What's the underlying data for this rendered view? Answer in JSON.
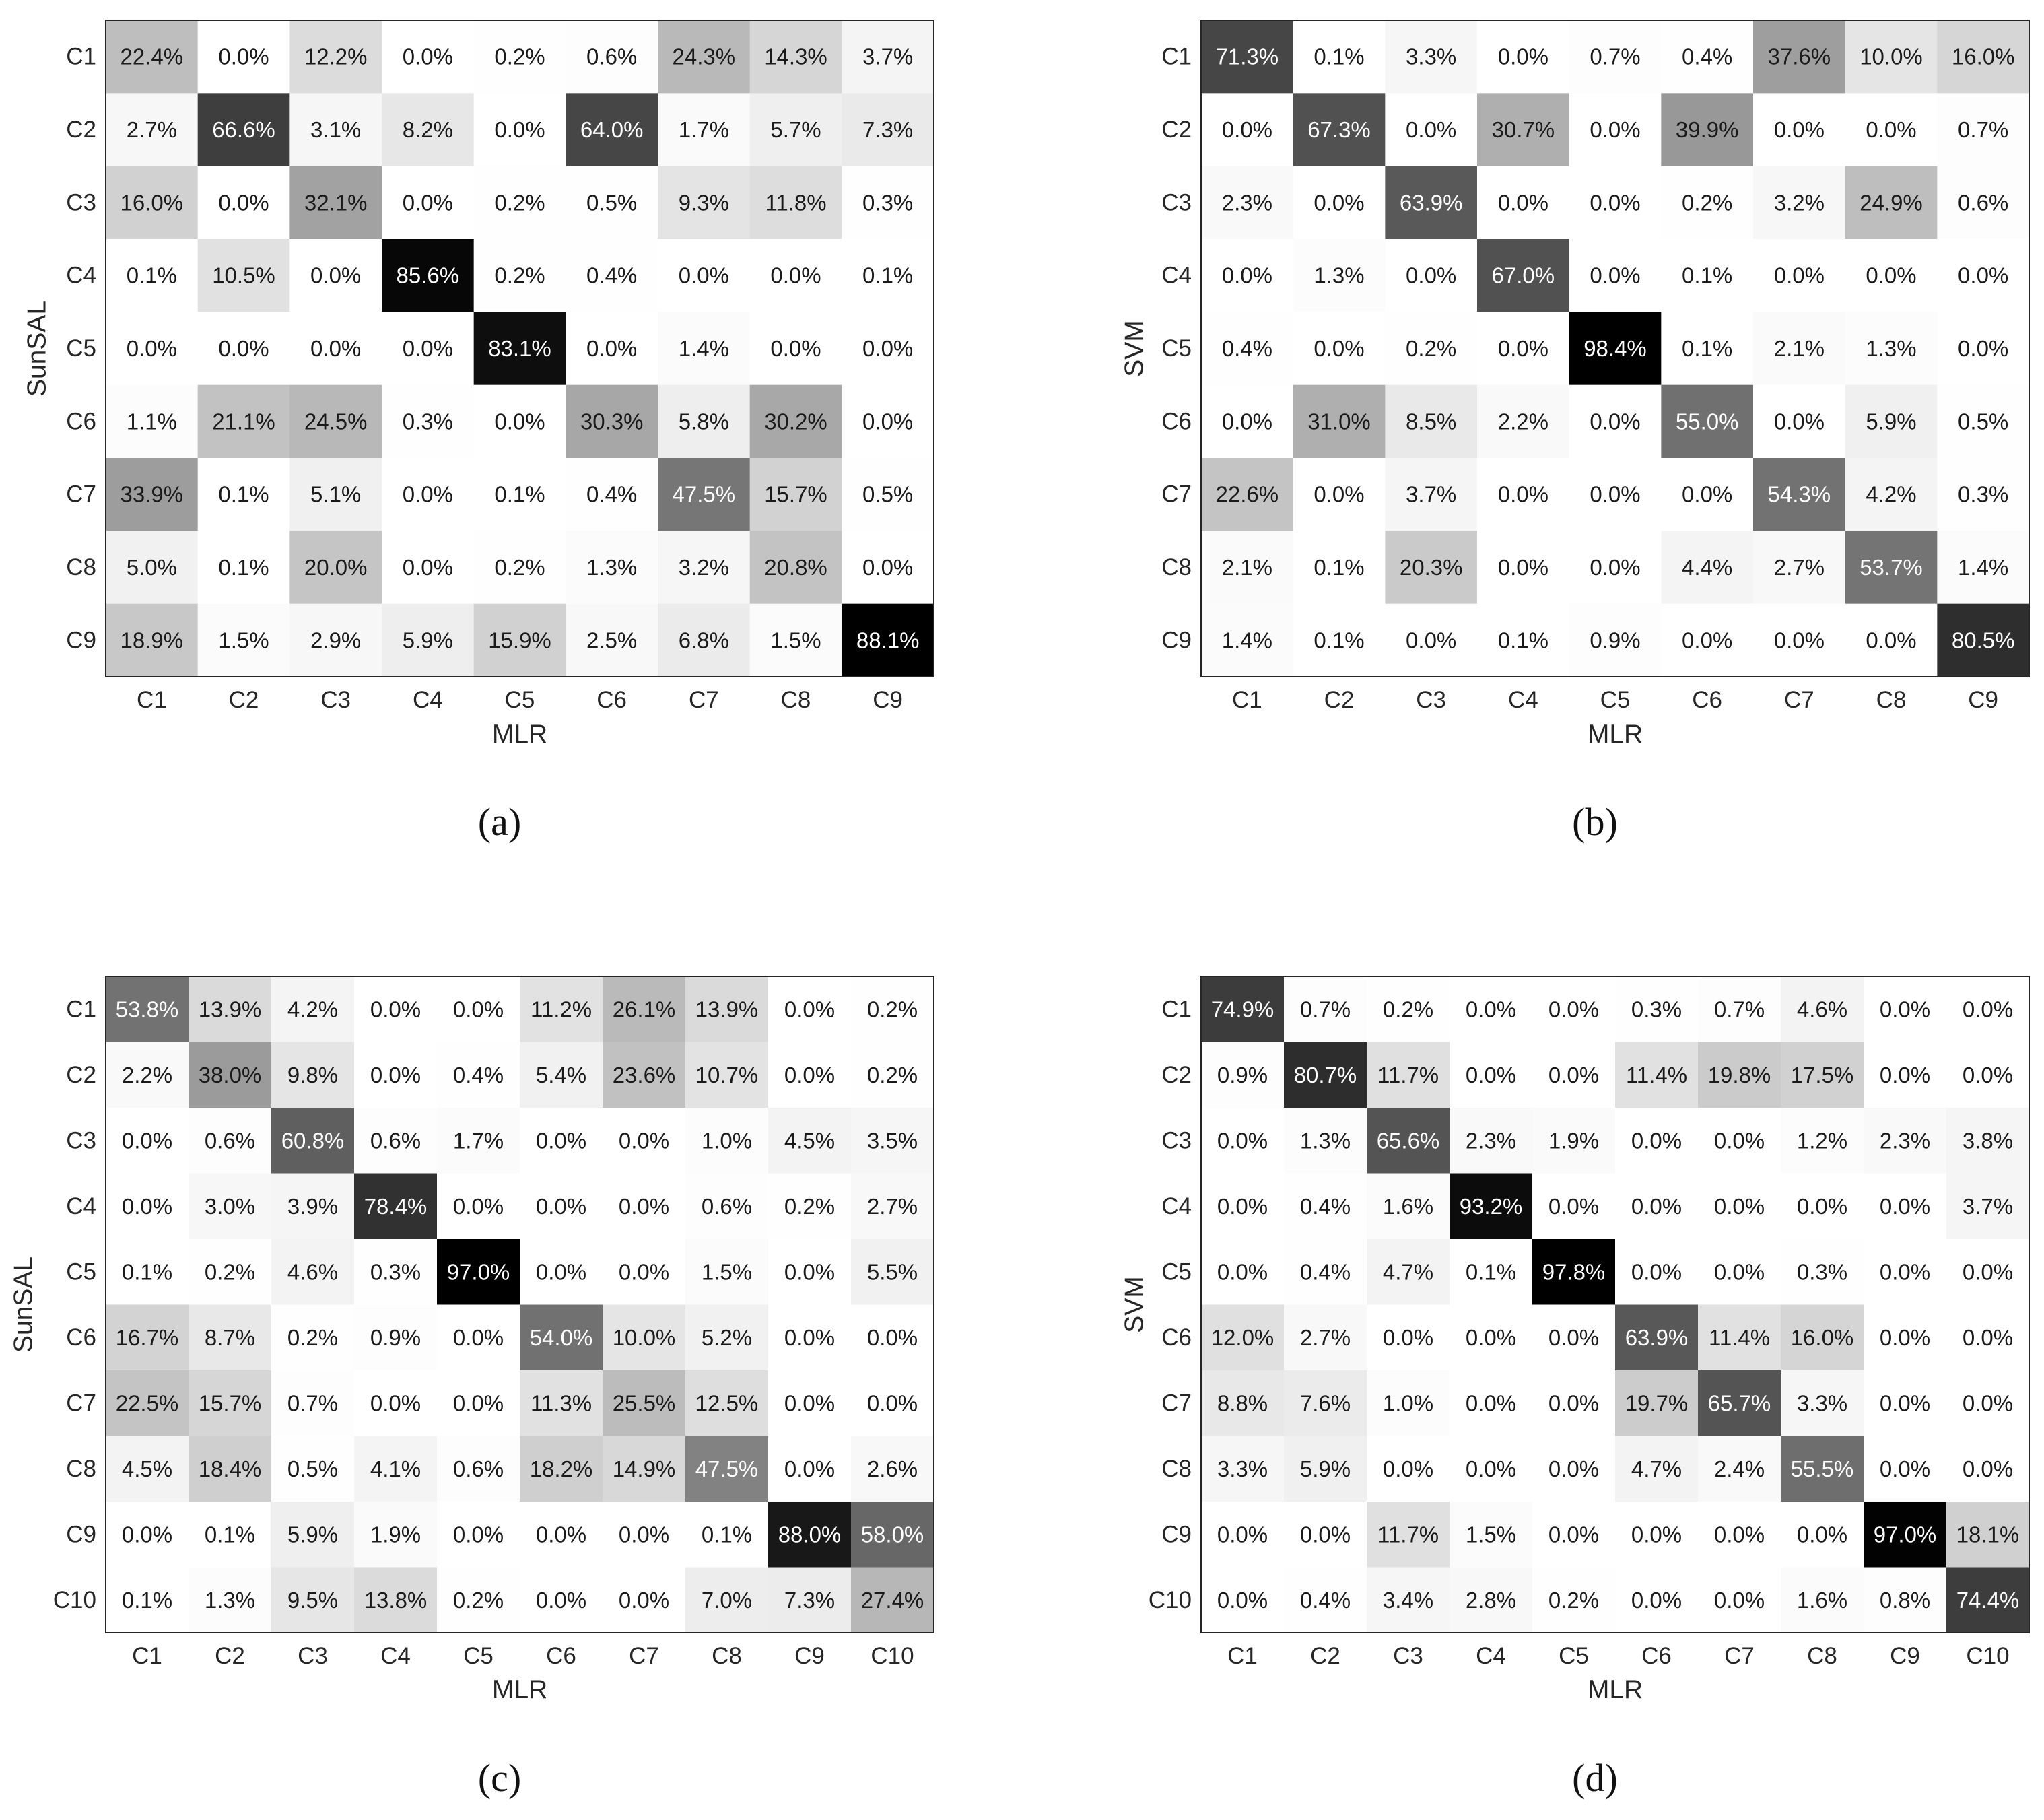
{
  "chart_data": [
    {
      "type": "heatmap",
      "caption": "(a)",
      "xlabel": "MLR",
      "ylabel": "SunSAL",
      "x_categories": [
        "C1",
        "C2",
        "C3",
        "C4",
        "C5",
        "C6",
        "C7",
        "C8",
        "C9"
      ],
      "y_categories": [
        "C1",
        "C2",
        "C3",
        "C4",
        "C5",
        "C6",
        "C7",
        "C8",
        "C9"
      ],
      "values": [
        [
          22.4,
          0.0,
          12.2,
          0.0,
          0.2,
          0.6,
          24.3,
          14.3,
          3.7
        ],
        [
          2.7,
          66.6,
          3.1,
          8.2,
          0.0,
          64.0,
          1.7,
          5.7,
          7.3
        ],
        [
          16.0,
          0.0,
          32.1,
          0.0,
          0.2,
          0.5,
          9.3,
          11.8,
          0.3
        ],
        [
          0.1,
          10.5,
          0.0,
          85.6,
          0.2,
          0.4,
          0.0,
          0.0,
          0.1
        ],
        [
          0.0,
          0.0,
          0.0,
          0.0,
          83.1,
          0.0,
          1.4,
          0.0,
          0.0
        ],
        [
          1.1,
          21.1,
          24.5,
          0.3,
          0.0,
          30.3,
          5.8,
          30.2,
          0.0
        ],
        [
          33.9,
          0.1,
          5.1,
          0.0,
          0.1,
          0.4,
          47.5,
          15.7,
          0.5
        ],
        [
          5.0,
          0.1,
          20.0,
          0.0,
          0.2,
          1.3,
          3.2,
          20.8,
          0.0
        ],
        [
          18.9,
          1.5,
          2.9,
          5.9,
          15.9,
          2.5,
          6.8,
          1.5,
          88.1
        ]
      ],
      "labels": [
        [
          "22.4%",
          "0.0%",
          "12.2%",
          "0.0%",
          "0.2%",
          "0.6%",
          "24.3%",
          "14.3%",
          "3.7%"
        ],
        [
          "2.7%",
          "66.6%",
          "3.1%",
          "8.2%",
          "0.0%",
          "64.0%",
          "1.7%",
          "5.7%",
          "7.3%"
        ],
        [
          "16.0%",
          "0.0%",
          "32.1%",
          "0.0%",
          "0.2%",
          "0.5%",
          "9.3%",
          "11.8%",
          "0.3%"
        ],
        [
          "0.1%",
          "10.5%",
          "0.0%",
          "85.6%",
          "0.2%",
          "0.4%",
          "0.0%",
          "0.0%",
          "0.1%"
        ],
        [
          "0.0%",
          "0.0%",
          "0.0%",
          "0.0%",
          "83.1%",
          "0.0%",
          "1.4%",
          "0.0%",
          "0.0%"
        ],
        [
          "1.1%",
          "21.1%",
          "24.5%",
          "0.3%",
          "0.0%",
          "30.3%",
          "5.8%",
          "30.2%",
          "0.0%"
        ],
        [
          "33.9%",
          "0.1%",
          "5.1%",
          "0.0%",
          "0.1%",
          "0.4%",
          "47.5%",
          "15.7%",
          "0.5%"
        ],
        [
          "5.0%",
          "0.1%",
          "20.0%",
          "0.0%",
          "0.2%",
          "1.3%",
          "3.2%",
          "20.8%",
          "0.0%"
        ],
        [
          "18.9%",
          "1.5%",
          "2.9%",
          "5.9%",
          "15.9%",
          "2.5%",
          "6.8%",
          "1.5%",
          "88.1%"
        ]
      ]
    },
    {
      "type": "heatmap",
      "caption": "(b)",
      "xlabel": "MLR",
      "ylabel": "SVM",
      "x_categories": [
        "C1",
        "C2",
        "C3",
        "C4",
        "C5",
        "C6",
        "C7",
        "C8",
        "C9"
      ],
      "y_categories": [
        "C1",
        "C2",
        "C3",
        "C4",
        "C5",
        "C6",
        "C7",
        "C8",
        "C9"
      ],
      "values": [
        [
          71.3,
          0.1,
          3.3,
          0.0,
          0.7,
          0.4,
          37.6,
          10.0,
          16.0
        ],
        [
          0.0,
          67.3,
          0.0,
          30.7,
          0.0,
          39.9,
          0.0,
          0.0,
          0.7
        ],
        [
          2.3,
          0.0,
          63.9,
          0.0,
          0.0,
          0.2,
          3.2,
          24.9,
          0.6
        ],
        [
          0.0,
          1.3,
          0.0,
          67.0,
          0.0,
          0.1,
          0.0,
          0.0,
          0.0
        ],
        [
          0.4,
          0.0,
          0.2,
          0.0,
          98.4,
          0.1,
          2.1,
          1.3,
          0.0
        ],
        [
          0.0,
          31.0,
          8.5,
          2.2,
          0.0,
          55.0,
          0.0,
          5.9,
          0.5
        ],
        [
          22.6,
          0.0,
          3.7,
          0.0,
          0.0,
          0.0,
          54.3,
          4.2,
          0.3
        ],
        [
          2.1,
          0.1,
          20.3,
          0.0,
          0.0,
          4.4,
          2.7,
          53.7,
          1.4
        ],
        [
          1.4,
          0.1,
          0.0,
          0.1,
          0.9,
          0.0,
          0.0,
          0.0,
          80.5
        ]
      ],
      "labels": [
        [
          "71.3%",
          "0.1%",
          "3.3%",
          "0.0%",
          "0.7%",
          "0.4%",
          "37.6%",
          "10.0%",
          "16.0%"
        ],
        [
          "0.0%",
          "67.3%",
          "0.0%",
          "30.7%",
          "0.0%",
          "39.9%",
          "0.0%",
          "0.0%",
          "0.7%"
        ],
        [
          "2.3%",
          "0.0%",
          "63.9%",
          "0.0%",
          "0.0%",
          "0.2%",
          "3.2%",
          "24.9%",
          "0.6%"
        ],
        [
          "0.0%",
          "1.3%",
          "0.0%",
          "67.0%",
          "0.0%",
          "0.1%",
          "0.0%",
          "0.0%",
          "0.0%"
        ],
        [
          "0.4%",
          "0.0%",
          "0.2%",
          "0.0%",
          "98.4%",
          "0.1%",
          "2.1%",
          "1.3%",
          "0.0%"
        ],
        [
          "0.0%",
          "31.0%",
          "8.5%",
          "2.2%",
          "0.0%",
          "55.0%",
          "0.0%",
          "5.9%",
          "0.5%"
        ],
        [
          "22.6%",
          "0.0%",
          "3.7%",
          "0.0%",
          "0.0%",
          "0.0%",
          "54.3%",
          "4.2%",
          "0.3%"
        ],
        [
          "2.1%",
          "0.1%",
          "20.3%",
          "0.0%",
          "0.0%",
          "4.4%",
          "2.7%",
          "53.7%",
          "1.4%"
        ],
        [
          "1.4%",
          "0.1%",
          "0.0%",
          "0.1%",
          "0.9%",
          "0.0%",
          "0.0%",
          "0.0%",
          "80.5%"
        ]
      ]
    },
    {
      "type": "heatmap",
      "caption": "(c)",
      "xlabel": "MLR",
      "ylabel": "SunSAL",
      "x_categories": [
        "C1",
        "C2",
        "C3",
        "C4",
        "C5",
        "C6",
        "C7",
        "C8",
        "C9",
        "C10"
      ],
      "y_categories": [
        "C1",
        "C2",
        "C3",
        "C4",
        "C5",
        "C6",
        "C7",
        "C8",
        "C9",
        "C10"
      ],
      "values": [
        [
          53.8,
          13.9,
          4.2,
          0.0,
          0.0,
          11.2,
          26.1,
          13.9,
          0.0,
          0.2
        ],
        [
          2.2,
          38.0,
          9.8,
          0.0,
          0.4,
          5.4,
          23.6,
          10.7,
          0.0,
          0.2
        ],
        [
          0.0,
          0.6,
          60.8,
          0.6,
          1.7,
          0.0,
          0.0,
          1.0,
          4.5,
          3.5
        ],
        [
          0.0,
          3.0,
          3.9,
          78.4,
          0.0,
          0.0,
          0.0,
          0.6,
          0.2,
          2.7
        ],
        [
          0.1,
          0.2,
          4.6,
          0.3,
          97.0,
          0.0,
          0.0,
          1.5,
          0.0,
          5.5
        ],
        [
          16.7,
          8.7,
          0.2,
          0.9,
          0.0,
          54.0,
          10.0,
          5.2,
          0.0,
          0.0
        ],
        [
          22.5,
          15.7,
          0.7,
          0.0,
          0.0,
          11.3,
          25.5,
          12.5,
          0.0,
          0.0
        ],
        [
          4.5,
          18.4,
          0.5,
          4.1,
          0.6,
          18.2,
          14.9,
          47.5,
          0.0,
          2.6
        ],
        [
          0.0,
          0.1,
          5.9,
          1.9,
          0.0,
          0.0,
          0.0,
          0.1,
          88.0,
          58.0
        ],
        [
          0.1,
          1.3,
          9.5,
          13.8,
          0.2,
          0.0,
          0.0,
          7.0,
          7.3,
          27.4
        ]
      ],
      "labels": [
        [
          "53.8%",
          "13.9%",
          "4.2%",
          "0.0%",
          "0.0%",
          "11.2%",
          "26.1%",
          "13.9%",
          "0.0%",
          "0.2%"
        ],
        [
          "2.2%",
          "38.0%",
          "9.8%",
          "0.0%",
          "0.4%",
          "5.4%",
          "23.6%",
          "10.7%",
          "0.0%",
          "0.2%"
        ],
        [
          "0.0%",
          "0.6%",
          "60.8%",
          "0.6%",
          "1.7%",
          "0.0%",
          "0.0%",
          "1.0%",
          "4.5%",
          "3.5%"
        ],
        [
          "0.0%",
          "3.0%",
          "3.9%",
          "78.4%",
          "0.0%",
          "0.0%",
          "0.0%",
          "0.6%",
          "0.2%",
          "2.7%"
        ],
        [
          "0.1%",
          "0.2%",
          "4.6%",
          "0.3%",
          "97.0%",
          "0.0%",
          "0.0%",
          "1.5%",
          "0.0%",
          "5.5%"
        ],
        [
          "16.7%",
          "8.7%",
          "0.2%",
          "0.9%",
          "0.0%",
          "54.0%",
          "10.0%",
          "5.2%",
          "0.0%",
          "0.0%"
        ],
        [
          "22.5%",
          "15.7%",
          "0.7%",
          "0.0%",
          "0.0%",
          "11.3%",
          "25.5%",
          "12.5%",
          "0.0%",
          "0.0%"
        ],
        [
          "4.5%",
          "18.4%",
          "0.5%",
          "4.1%",
          "0.6%",
          "18.2%",
          "14.9%",
          "47.5%",
          "0.0%",
          "2.6%"
        ],
        [
          "0.0%",
          "0.1%",
          "5.9%",
          "1.9%",
          "0.0%",
          "0.0%",
          "0.0%",
          "0.1%",
          "88.0%",
          "58.0%"
        ],
        [
          "0.1%",
          "1.3%",
          "9.5%",
          "13.8%",
          "0.2%",
          "0.0%",
          "0.0%",
          "7.0%",
          "7.3%",
          "27.4%"
        ]
      ]
    },
    {
      "type": "heatmap",
      "caption": "(d)",
      "xlabel": "MLR",
      "ylabel": "SVM",
      "x_categories": [
        "C1",
        "C2",
        "C3",
        "C4",
        "C5",
        "C6",
        "C7",
        "C8",
        "C9",
        "C10"
      ],
      "y_categories": [
        "C1",
        "C2",
        "C3",
        "C4",
        "C5",
        "C6",
        "C7",
        "C8",
        "C9",
        "C10"
      ],
      "values": [
        [
          74.9,
          0.7,
          0.2,
          0.0,
          0.0,
          0.3,
          0.7,
          4.6,
          0.0,
          0.0
        ],
        [
          0.9,
          80.7,
          11.7,
          0.0,
          0.0,
          11.4,
          19.8,
          17.5,
          0.0,
          0.0
        ],
        [
          0.0,
          1.3,
          65.6,
          2.3,
          1.9,
          0.0,
          0.0,
          1.2,
          2.3,
          3.8
        ],
        [
          0.0,
          0.4,
          1.6,
          93.2,
          0.0,
          0.0,
          0.0,
          0.0,
          0.0,
          3.7
        ],
        [
          0.0,
          0.4,
          4.7,
          0.1,
          97.8,
          0.0,
          0.0,
          0.3,
          0.0,
          0.0
        ],
        [
          12.0,
          2.7,
          0.0,
          0.0,
          0.0,
          63.9,
          11.4,
          16.0,
          0.0,
          0.0
        ],
        [
          8.8,
          7.6,
          1.0,
          0.0,
          0.0,
          19.7,
          65.7,
          3.3,
          0.0,
          0.0
        ],
        [
          3.3,
          5.9,
          0.0,
          0.0,
          0.0,
          4.7,
          2.4,
          55.5,
          0.0,
          0.0
        ],
        [
          0.0,
          0.0,
          11.7,
          1.5,
          0.0,
          0.0,
          0.0,
          0.0,
          97.0,
          18.1
        ],
        [
          0.0,
          0.4,
          3.4,
          2.8,
          0.2,
          0.0,
          0.0,
          1.6,
          0.8,
          74.4
        ]
      ],
      "labels": [
        [
          "74.9%",
          "0.7%",
          "0.2%",
          "0.0%",
          "0.0%",
          "0.3%",
          "0.7%",
          "4.6%",
          "0.0%",
          "0.0%"
        ],
        [
          "0.9%",
          "80.7%",
          "11.7%",
          "0.0%",
          "0.0%",
          "11.4%",
          "19.8%",
          "17.5%",
          "0.0%",
          "0.0%"
        ],
        [
          "0.0%",
          "1.3%",
          "65.6%",
          "2.3%",
          "1.9%",
          "0.0%",
          "0.0%",
          "1.2%",
          "2.3%",
          "3.8%"
        ],
        [
          "0.0%",
          "0.4%",
          "1.6%",
          "93.2%",
          "0.0%",
          "0.0%",
          "0.0%",
          "0.0%",
          "0.0%",
          "3.7%"
        ],
        [
          "0.0%",
          "0.4%",
          "4.7%",
          "0.1%",
          "97.8%",
          "0.0%",
          "0.0%",
          "0.3%",
          "0.0%",
          "0.0%"
        ],
        [
          "12.0%",
          "2.7%",
          "0.0%",
          "0.0%",
          "0.0%",
          "63.9%",
          "11.4%",
          "16.0%",
          "0.0%",
          "0.0%"
        ],
        [
          "8.8%",
          "7.6%",
          "1.0%",
          "0.0%",
          "0.0%",
          "19.7%",
          "65.7%",
          "3.3%",
          "0.0%",
          "0.0%"
        ],
        [
          "3.3%",
          "5.9%",
          "0.0%",
          "0.0%",
          "0.0%",
          "4.7%",
          "2.4%",
          "55.5%",
          "0.0%",
          "0.0%"
        ],
        [
          "0.0%",
          "0.0%",
          "11.7%",
          "1.5%",
          "0.0%",
          "0.0%",
          "0.0%",
          "0.0%",
          "97.0%",
          "18.1%"
        ],
        [
          "0.0%",
          "0.4%",
          "3.4%",
          "2.8%",
          "0.2%",
          "0.0%",
          "0.0%",
          "1.6%",
          "0.8%",
          "74.4%"
        ]
      ]
    }
  ],
  "colors": {
    "cell_min": "#ffffff",
    "cell_max": "#000000",
    "dark_text": "#1a1a1a",
    "light_text": "#ffffff",
    "frame": "#262626"
  }
}
